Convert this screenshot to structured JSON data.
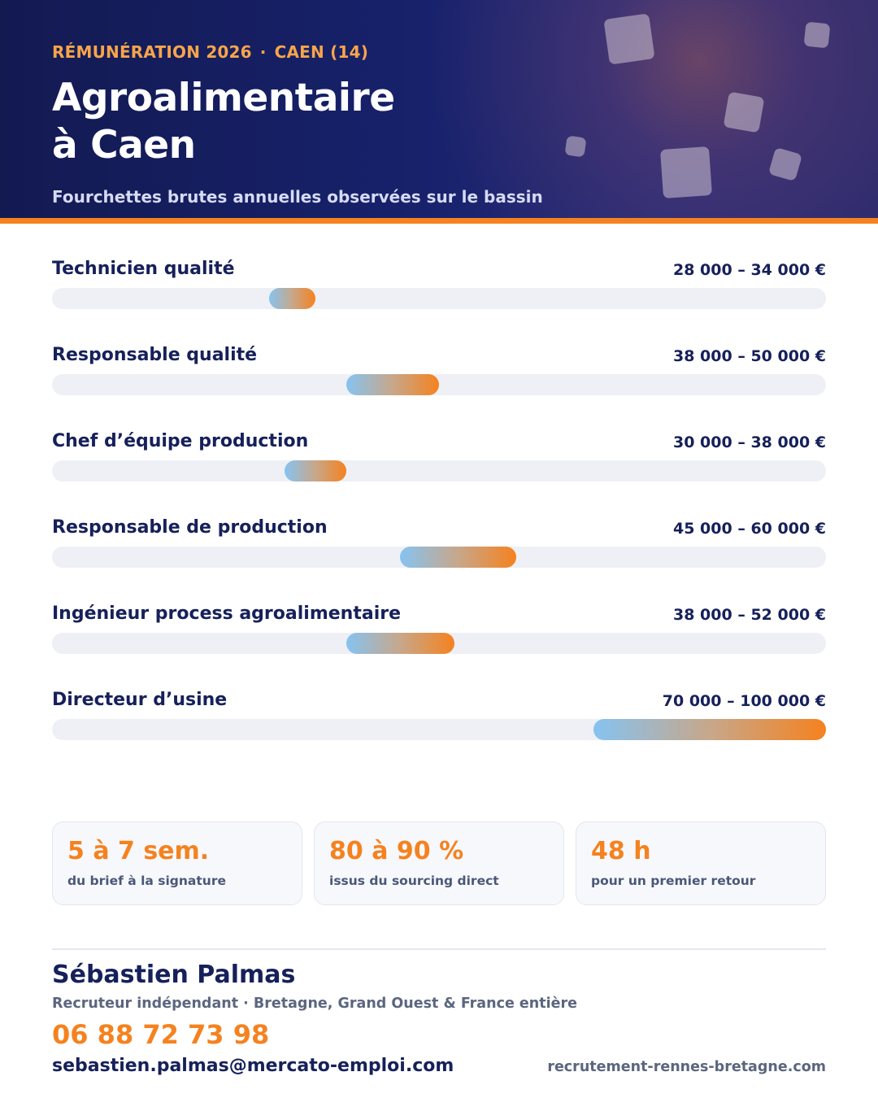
{
  "header": {
    "eyebrow_left": "RÉMUNÉRATION 2026",
    "eyebrow_sep": "·",
    "eyebrow_right": "CAEN (14)",
    "title_line1": "Agroalimentaire",
    "title_line2": "à Caen",
    "subtitle": "Fourchettes brutes annuelles observées sur le bassin"
  },
  "colors": {
    "navy": "#16205a",
    "accent_orange": "#f5821f",
    "bar_start_blue": "#86c3f1",
    "track": "#eef0f6"
  },
  "chart_data": {
    "type": "range-bar",
    "title": "",
    "unit": "€",
    "xlim": [
      0,
      100000
    ],
    "grid": false,
    "rows": [
      {
        "label": "Technicien qualité",
        "min": 28000,
        "max": 34000,
        "value_text": "28 000 – 34 000 €"
      },
      {
        "label": "Responsable qualité",
        "min": 38000,
        "max": 50000,
        "value_text": "38 000 – 50 000 €"
      },
      {
        "label": "Chef d’équipe production",
        "min": 30000,
        "max": 38000,
        "value_text": "30 000 – 38 000 €"
      },
      {
        "label": "Responsable de production",
        "min": 45000,
        "max": 60000,
        "value_text": "45 000 – 60 000 €"
      },
      {
        "label": "Ingénieur process agroalimentaire",
        "min": 38000,
        "max": 52000,
        "value_text": "38 000 – 52 000 €"
      },
      {
        "label": "Directeur d’usine",
        "min": 70000,
        "max": 100000,
        "value_text": "70 000 – 100 000 €"
      }
    ]
  },
  "stats": [
    {
      "value": "5 à 7 sem.",
      "caption": "du brief à la signature"
    },
    {
      "value": "80 à 90 %",
      "caption": "issus du sourcing direct"
    },
    {
      "value": "48 h",
      "caption": "pour un premier retour"
    }
  ],
  "contact": {
    "name": "Sébastien Palmas",
    "role": "Recruteur indépendant · Bretagne, Grand Ouest & France entière",
    "phone": "06 88 72 73 98",
    "email": "sebastien.palmas@mercato-emploi.com",
    "website": "recrutement-rennes-bretagne.com"
  }
}
